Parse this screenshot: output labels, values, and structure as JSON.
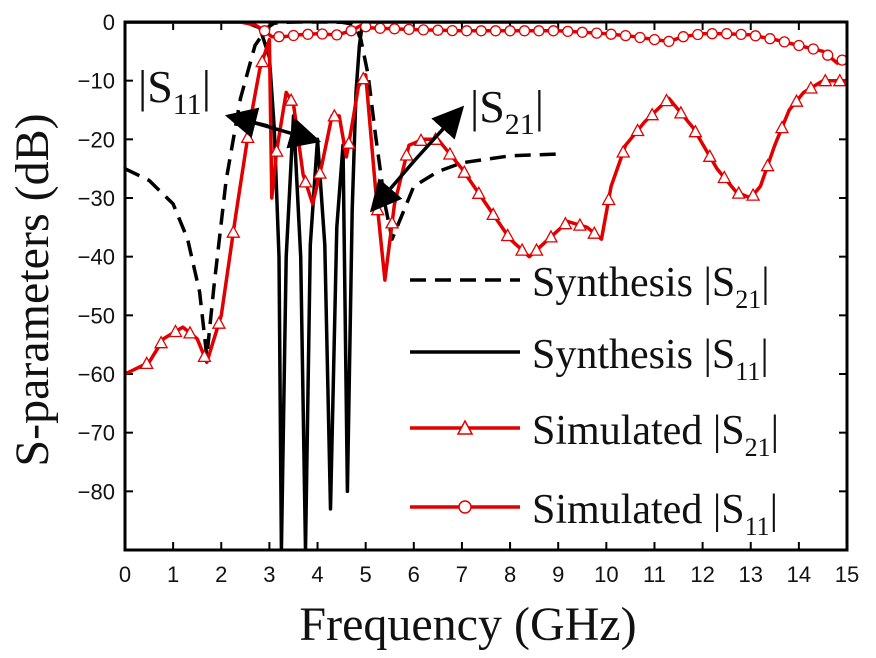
{
  "chart_data": {
    "type": "line",
    "xlabel": "Frequency (GHz)",
    "ylabel": "S-parameters (dB)",
    "xlim": [
      0,
      15
    ],
    "ylim": [
      -90,
      0
    ],
    "xticks": [
      0,
      1,
      2,
      3,
      4,
      5,
      6,
      7,
      8,
      9,
      10,
      11,
      12,
      13,
      14,
      15
    ],
    "yticks": [
      0,
      -10,
      -20,
      -30,
      -40,
      -50,
      -60,
      -70,
      -80
    ],
    "grid": false,
    "legend_position": "bottom-right",
    "legend": [
      {
        "text": "Synthesis  |S",
        "sub": "21",
        "close": "|"
      },
      {
        "text": "Synthesis  |S",
        "sub": "11",
        "close": "|"
      },
      {
        "text": "Simulated  |S",
        "sub": "21",
        "close": "|"
      },
      {
        "text": "Simulated  |S",
        "sub": "11",
        "close": "|"
      }
    ],
    "annotations": [
      {
        "text": "|S",
        "sub": "11",
        "close": "|"
      },
      {
        "text": "|S",
        "sub": "21",
        "close": "|"
      }
    ],
    "series": [
      {
        "name": "Synthesis |S21|",
        "color": "#000000",
        "dash": true,
        "marker": "none",
        "x": [
          0.0,
          0.5,
          1.0,
          1.3,
          1.55,
          1.7,
          1.85,
          2.1,
          2.4,
          2.7,
          2.95,
          3.1,
          3.3,
          3.6,
          3.9,
          4.2,
          4.5,
          4.7,
          4.8,
          4.9,
          5.05,
          5.2,
          5.4,
          5.55,
          5.75,
          6.0,
          6.5,
          7.0,
          8.0,
          9.0
        ],
        "y": [
          -25,
          -27,
          -31,
          -37,
          -46,
          -57,
          -45,
          -27,
          -13,
          -4,
          -1,
          -0.2,
          -0.05,
          0,
          0,
          0,
          -0.05,
          -0.3,
          -1,
          -3,
          -9,
          -19,
          -31,
          -37,
          -33,
          -28,
          -25.5,
          -24,
          -22.8,
          -22.5
        ]
      },
      {
        "name": "Synthesis |S11|",
        "color": "#000000",
        "dash": false,
        "marker": "none",
        "x": [
          0.0,
          2.5,
          2.8,
          3.0,
          3.1,
          3.2,
          3.25,
          3.35,
          3.5,
          3.65,
          3.75,
          3.85,
          4.0,
          4.15,
          4.27,
          4.4,
          4.53,
          4.62,
          4.72,
          4.8,
          4.87,
          4.92,
          5.0,
          6.0,
          9.0
        ],
        "y": [
          0,
          0,
          -1,
          -6,
          -18,
          -40,
          -90,
          -40,
          -16,
          -40,
          -90,
          -38,
          -20,
          -38,
          -83,
          -35,
          -21,
          -80,
          -32,
          -12,
          -4,
          -1,
          0,
          0,
          0
        ]
      },
      {
        "name": "Simulated |S21|",
        "color": "#e00000",
        "dash": false,
        "marker": "triangle",
        "x": [
          0.0,
          0.5,
          0.8,
          1.2,
          1.5,
          1.7,
          2.0,
          2.3,
          2.6,
          2.8,
          3.0,
          3.05,
          3.15,
          3.35,
          3.5,
          3.7,
          3.9,
          4.1,
          4.3,
          4.45,
          4.6,
          4.75,
          4.85,
          5.0,
          5.2,
          5.4,
          5.6,
          5.9,
          6.2,
          6.5,
          7.0,
          7.5,
          8.0,
          8.4,
          8.8,
          9.2,
          9.6,
          9.9,
          10.1,
          10.4,
          10.8,
          11.3,
          11.8,
          12.3,
          12.7,
          13.0,
          13.2,
          13.5,
          13.8,
          14.1,
          14.5,
          15.0
        ],
        "y": [
          -60,
          -58,
          -54,
          -52,
          -54,
          -58,
          -50,
          -33,
          -17,
          -8,
          -3,
          -30,
          -22,
          -12,
          -14,
          -26,
          -31,
          -24,
          -16,
          -16,
          -23,
          -16,
          -11,
          -9,
          -28,
          -44,
          -31,
          -21,
          -20,
          -20,
          -25,
          -31,
          -37,
          -40,
          -37,
          -34,
          -35,
          -37,
          -28,
          -21,
          -17,
          -13,
          -18,
          -25,
          -29,
          -30,
          -28,
          -21,
          -15,
          -12,
          -10,
          -10
        ]
      },
      {
        "name": "Simulated |S11|",
        "color": "#e00000",
        "dash": false,
        "marker": "circle",
        "x": [
          0.0,
          2.4,
          2.7,
          2.9,
          3.05,
          3.3,
          3.6,
          4.0,
          4.4,
          4.7,
          4.9,
          5.1,
          6.0,
          7.0,
          8.0,
          9.0,
          10.0,
          10.5,
          11.0,
          11.3,
          11.6,
          12.0,
          12.5,
          13.0,
          13.5,
          14.0,
          14.5,
          14.8,
          15.0
        ],
        "y": [
          0,
          0,
          -0.5,
          -1.5,
          -2.5,
          -2.5,
          -2.2,
          -2,
          -2.2,
          -1.5,
          -0.6,
          -1,
          -1.3,
          -1.5,
          -1.5,
          -1.5,
          -2,
          -2.4,
          -3,
          -3.3,
          -2.5,
          -2,
          -2,
          -2.2,
          -3,
          -4,
          -5,
          -7,
          -6
        ]
      }
    ]
  }
}
